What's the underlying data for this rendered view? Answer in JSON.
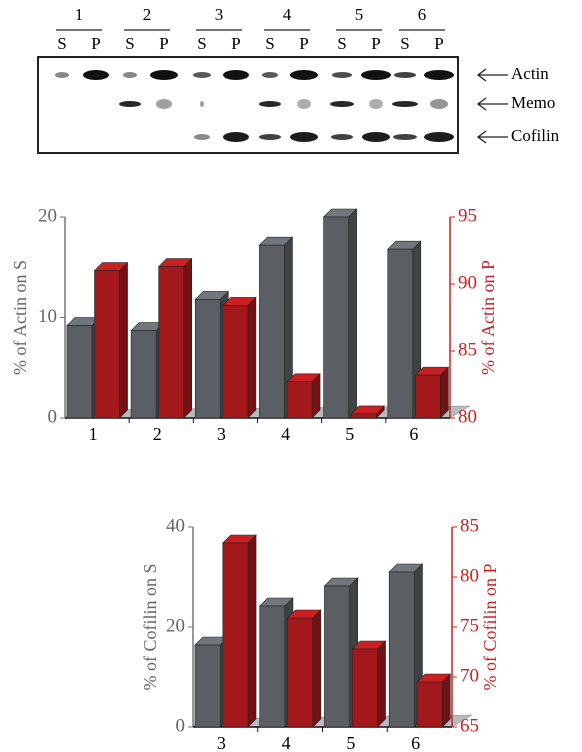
{
  "gel": {
    "lanes": [
      {
        "number": "1",
        "fractions": [
          "S",
          "P"
        ]
      },
      {
        "number": "2",
        "fractions": [
          "S",
          "P"
        ]
      },
      {
        "number": "3",
        "fractions": [
          "S",
          "P"
        ]
      },
      {
        "number": "4",
        "fractions": [
          "S",
          "P"
        ]
      },
      {
        "number": "5",
        "fractions": [
          "S",
          "P"
        ]
      },
      {
        "number": "6",
        "fractions": [
          "S",
          "P"
        ]
      }
    ],
    "markers": [
      "Actin",
      "Memo",
      "Cofilin"
    ]
  },
  "chart_data": [
    {
      "type": "bar3d",
      "categories": [
        "1",
        "2",
        "3",
        "4",
        "5",
        "6"
      ],
      "y_label": "% of Actin on S",
      "y2_label": "% of Actin on P",
      "ylim": [
        0,
        20
      ],
      "yticks": [
        0,
        10,
        20
      ],
      "y2lim": [
        80,
        95
      ],
      "y2ticks": [
        80,
        85,
        90,
        95
      ],
      "series": [
        {
          "color": "#5b5f64",
          "values": [
            9.2,
            8.7,
            11.8,
            17.2,
            20,
            16.8
          ]
        },
        {
          "color": "#a3191b",
          "axis": "y2",
          "values": [
            91.0,
            91.3,
            88.4,
            82.7,
            80.3,
            83.2
          ]
        }
      ]
    },
    {
      "type": "bar3d",
      "categories": [
        "3",
        "4",
        "5",
        "6"
      ],
      "y_label": "% of Cofilin on S",
      "y2_label": "% of Cofilin on P",
      "ylim": [
        0,
        40
      ],
      "yticks": [
        0,
        20,
        40
      ],
      "y2lim": [
        65,
        85
      ],
      "y2ticks": [
        65,
        70,
        75,
        80,
        85
      ],
      "series": [
        {
          "color": "#5b5f64",
          "values": [
            16.4,
            24.2,
            28.2,
            31.0
          ]
        },
        {
          "color": "#a3191b",
          "axis": "y2",
          "values": [
            83.4,
            75.9,
            72.8,
            69.5
          ]
        }
      ]
    }
  ]
}
